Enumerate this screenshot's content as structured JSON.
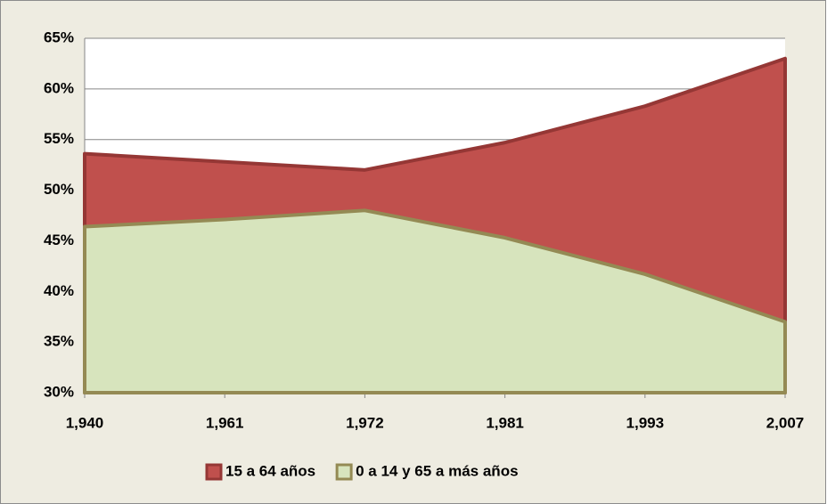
{
  "chart_data": {
    "type": "area",
    "categories": [
      "1,940",
      "1,961",
      "1,972",
      "1,981",
      "1,993",
      "2,007"
    ],
    "series": [
      {
        "name": "15 a 64 años",
        "color": "#c0504d",
        "line_color": "#953735",
        "values": [
          53.6,
          52.8,
          52.0,
          54.7,
          58.3,
          63.0
        ]
      },
      {
        "name": "0 a 14 y 65 a más años",
        "color": "#d7e4bd",
        "line_color": "#948a54",
        "values": [
          46.4,
          47.1,
          48.0,
          45.3,
          41.7,
          37.0
        ]
      }
    ],
    "ylim": [
      30,
      65
    ],
    "yticks": [
      {
        "value": 30,
        "label": "30%"
      },
      {
        "value": 35,
        "label": "35%"
      },
      {
        "value": 40,
        "label": "40%"
      },
      {
        "value": 45,
        "label": "45%"
      },
      {
        "value": 50,
        "label": "50%"
      },
      {
        "value": 55,
        "label": "55%"
      },
      {
        "value": 60,
        "label": "60%"
      },
      {
        "value": 65,
        "label": "65%"
      }
    ],
    "grid": true,
    "legend": "bottom"
  }
}
